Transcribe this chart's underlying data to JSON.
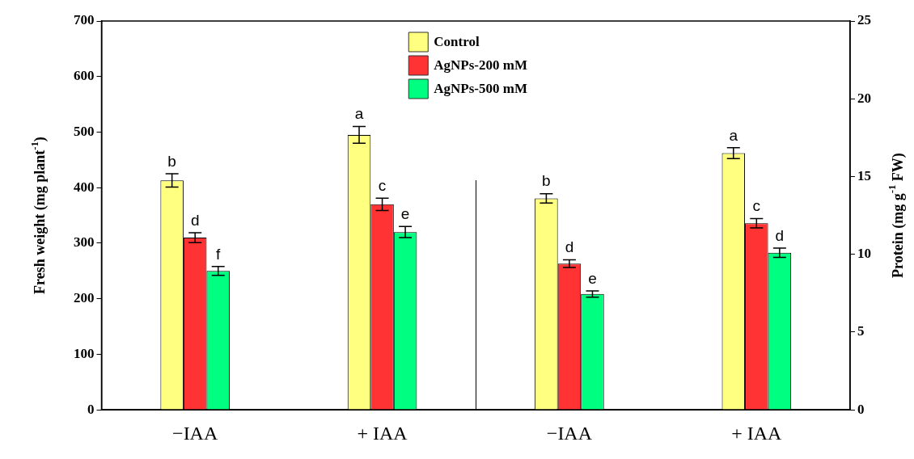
{
  "chart_data": {
    "type": "bar",
    "categories": [
      "−IAA",
      "+ IAA",
      "−IAA",
      "+ IAA"
    ],
    "ylabel": "Fresh weight (mg plant$^{-1}$)",
    "y2label": "Protein (mg g$^{-1}$ FW)",
    "ylim": [
      0,
      700
    ],
    "yticks": [
      0,
      100,
      200,
      300,
      400,
      500,
      600,
      700
    ],
    "y2lim": [
      0,
      25
    ],
    "y2ticks": [
      0,
      5,
      10,
      15,
      20,
      25
    ],
    "grid": false,
    "legend": "top",
    "series": [
      {
        "name": "Control",
        "color": "#ffff80",
        "values": [
          413,
          495,
          null,
          null
        ],
        "errors": [
          12,
          15,
          null,
          null
        ],
        "value_labels": [
          "b",
          "a",
          null,
          null
        ]
      },
      {
        "name": "AgNPs-200 mM",
        "color": "#ff3333",
        "values": [
          310,
          370,
          null,
          null
        ],
        "errors": [
          9,
          11,
          null,
          null
        ],
        "value_labels": [
          "d",
          "c",
          null,
          null
        ]
      },
      {
        "name": "AgNPs-500 mM",
        "color": "#00ff80",
        "values": [
          250,
          320,
          null,
          null
        ],
        "errors": [
          8,
          10,
          null,
          null
        ],
        "value_labels": [
          "f",
          "e",
          null,
          null
        ]
      },
      {
        "axis": "y2",
        "color": "#ffff80",
        "values": [
          null,
          null,
          13.6,
          16.5
        ],
        "errors": [
          null,
          null,
          0.3,
          0.35
        ],
        "value_labels": [
          null,
          null,
          "b",
          "a"
        ]
      },
      {
        "axis": "y2",
        "color": "#ff3333",
        "values": [
          null,
          null,
          9.4,
          12
        ],
        "errors": [
          null,
          null,
          0.25,
          0.3
        ],
        "value_labels": [
          null,
          null,
          "d",
          "c"
        ]
      },
      {
        "axis": "y2",
        "color": "#00ff80",
        "values": [
          null,
          null,
          7.45,
          10.1
        ],
        "errors": [
          null,
          null,
          0.2,
          0.3
        ],
        "value_labels": [
          null,
          null,
          "e",
          "d"
        ]
      }
    ]
  }
}
